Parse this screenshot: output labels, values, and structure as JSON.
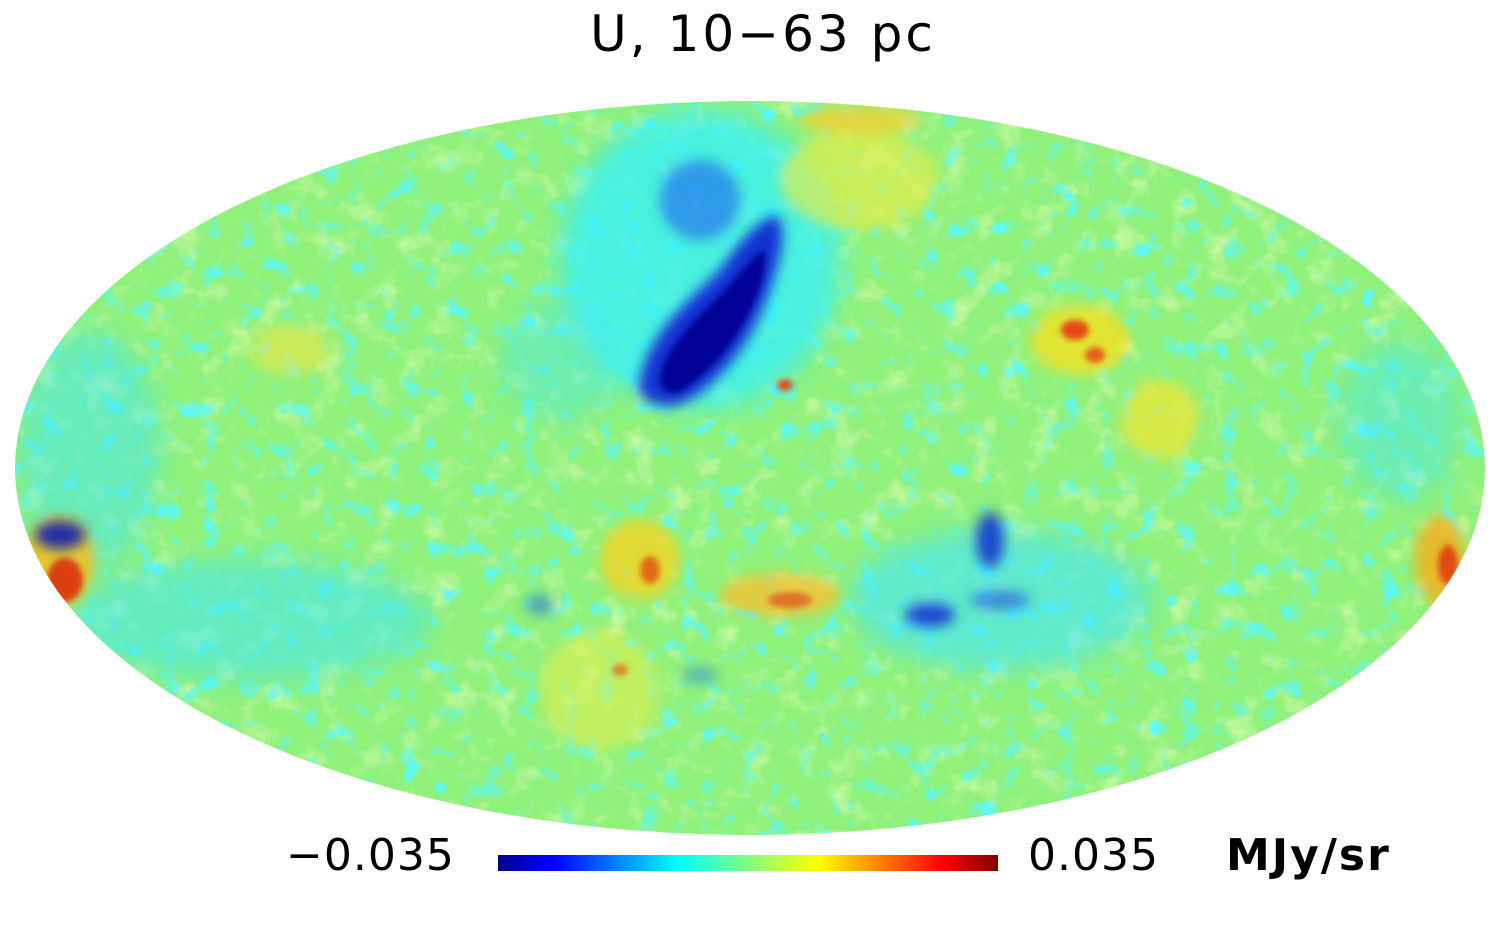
{
  "title": "U, 10−63 pc",
  "colorbar": {
    "min_label": "−0.035",
    "max_label": "0.035",
    "unit": "MJy/sr",
    "min": -0.035,
    "max": 0.035,
    "colormap": [
      "#00008f",
      "#0000ff",
      "#00ffff",
      "#80ff80",
      "#ffff00",
      "#ff0000",
      "#800000"
    ]
  },
  "map": {
    "projection": "mollweide",
    "background_color": "#8ff07a"
  }
}
